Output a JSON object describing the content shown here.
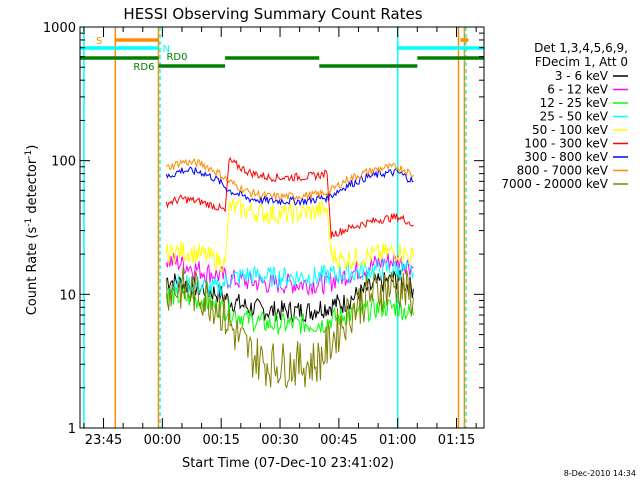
{
  "chart_data": {
    "type": "line",
    "title": "HESSI Observing Summary Count Rates",
    "xlabel": "Start Time (07-Dec-10 23:41:02)",
    "ylabel_main": "Count Rate (s",
    "ylabel_sup1": "-1",
    "ylabel_mid": " detector",
    "ylabel_sup2": "-1",
    "ylabel_end": ")",
    "yscale": "log",
    "ylim": [
      1,
      1000
    ],
    "xlim_min": [
      -21,
      82
    ],
    "y_ticks": [
      {
        "value": 1,
        "label": "1"
      },
      {
        "value": 10,
        "label": "10"
      },
      {
        "value": 100,
        "label": "100"
      },
      {
        "value": 1000,
        "label": "1000"
      }
    ],
    "x_ticks": [
      {
        "value": -15,
        "label": "23:45"
      },
      {
        "value": 0,
        "label": "00:00"
      },
      {
        "value": 15,
        "label": "00:15"
      },
      {
        "value": 30,
        "label": "00:30"
      },
      {
        "value": 45,
        "label": "00:45"
      },
      {
        "value": 60,
        "label": "01:00"
      },
      {
        "value": 75,
        "label": "01:15"
      }
    ],
    "legend_header": [
      "Det 1,3,4,5,6,9,",
      "FDecim 1, Att 0"
    ],
    "legend_placement": "right",
    "timestamp": "8-Dec-2010 14:34",
    "series": [
      {
        "name": "3 - 6 keV",
        "color": "#000000",
        "points": [
          [
            1,
            13
          ],
          [
            5,
            12
          ],
          [
            10,
            11
          ],
          [
            15,
            10
          ],
          [
            17,
            9
          ],
          [
            22,
            8
          ],
          [
            27,
            7.5
          ],
          [
            32,
            7.5
          ],
          [
            38,
            7.5
          ],
          [
            40,
            8
          ],
          [
            42,
            8
          ],
          [
            44,
            8.5
          ],
          [
            46,
            8.5
          ],
          [
            50,
            10
          ],
          [
            55,
            12
          ],
          [
            60,
            13
          ],
          [
            62,
            12
          ],
          [
            64,
            11
          ]
        ]
      },
      {
        "name": "6 - 12 keV",
        "color": "#ff00ff",
        "points": [
          [
            1,
            18
          ],
          [
            5,
            17
          ],
          [
            10,
            15
          ],
          [
            14,
            14
          ],
          [
            17,
            13
          ],
          [
            22,
            12.5
          ],
          [
            27,
            12
          ],
          [
            32,
            12
          ],
          [
            37,
            12
          ],
          [
            40,
            12
          ],
          [
            42,
            12
          ],
          [
            44,
            13
          ],
          [
            47,
            14
          ],
          [
            52,
            16
          ],
          [
            56,
            17.5
          ],
          [
            60,
            18
          ],
          [
            62,
            17
          ],
          [
            64,
            16
          ]
        ]
      },
      {
        "name": "12 - 25 keV",
        "color": "#00ff00",
        "points": [
          [
            1,
            10
          ],
          [
            5,
            9.5
          ],
          [
            10,
            9
          ],
          [
            14,
            8
          ],
          [
            17,
            7.5
          ],
          [
            22,
            6.5
          ],
          [
            27,
            6
          ],
          [
            32,
            6
          ],
          [
            38,
            6
          ],
          [
            41,
            6
          ],
          [
            43,
            6.5
          ],
          [
            47,
            7
          ],
          [
            52,
            7.5
          ],
          [
            56,
            8
          ],
          [
            60,
            8
          ],
          [
            62,
            7.5
          ],
          [
            64,
            7
          ]
        ]
      },
      {
        "name": "25 - 50 keV",
        "color": "#00ffff",
        "points": [
          [
            1,
            12
          ],
          [
            5,
            12
          ],
          [
            10,
            11.5
          ],
          [
            14,
            11
          ],
          [
            17,
            13
          ],
          [
            22,
            14
          ],
          [
            27,
            13.5
          ],
          [
            32,
            13.5
          ],
          [
            37,
            13.5
          ],
          [
            40,
            13.5
          ],
          [
            42,
            14
          ],
          [
            44,
            14
          ],
          [
            48,
            14.5
          ],
          [
            52,
            15
          ],
          [
            56,
            15.5
          ],
          [
            60,
            15.5
          ],
          [
            62,
            15
          ],
          [
            64,
            14.5
          ]
        ]
      },
      {
        "name": "50 - 100 keV",
        "color": "#ffff00",
        "points": [
          [
            1,
            20
          ],
          [
            5,
            21
          ],
          [
            10,
            20
          ],
          [
            14,
            18
          ],
          [
            16,
            17
          ],
          [
            17,
            45
          ],
          [
            22,
            42
          ],
          [
            27,
            40
          ],
          [
            32,
            40
          ],
          [
            37,
            41
          ],
          [
            40,
            42
          ],
          [
            42,
            44
          ],
          [
            43,
            20
          ],
          [
            46,
            18
          ],
          [
            50,
            19
          ],
          [
            55,
            20
          ],
          [
            60,
            21
          ],
          [
            62,
            20
          ],
          [
            64,
            19
          ]
        ]
      },
      {
        "name": "100 - 300 keV",
        "color": "#ff0000",
        "points": [
          [
            1,
            48
          ],
          [
            5,
            52
          ],
          [
            10,
            49
          ],
          [
            14,
            45
          ],
          [
            16,
            42
          ],
          [
            17,
            100
          ],
          [
            22,
            82
          ],
          [
            27,
            75
          ],
          [
            32,
            75
          ],
          [
            37,
            76
          ],
          [
            40,
            78
          ],
          [
            42,
            80
          ],
          [
            43,
            28
          ],
          [
            46,
            30
          ],
          [
            50,
            33
          ],
          [
            55,
            36
          ],
          [
            60,
            38
          ],
          [
            62,
            36
          ],
          [
            64,
            33
          ]
        ]
      },
      {
        "name": "300 - 800 keV",
        "color": "#0000ff",
        "points": [
          [
            1,
            75
          ],
          [
            5,
            85
          ],
          [
            10,
            82
          ],
          [
            14,
            72
          ],
          [
            17,
            60
          ],
          [
            22,
            52
          ],
          [
            27,
            50
          ],
          [
            32,
            50
          ],
          [
            37,
            50
          ],
          [
            40,
            52
          ],
          [
            42,
            53
          ],
          [
            43,
            55
          ],
          [
            47,
            65
          ],
          [
            52,
            75
          ],
          [
            56,
            80
          ],
          [
            60,
            82
          ],
          [
            62,
            76
          ],
          [
            64,
            70
          ]
        ]
      },
      {
        "name": "800 - 7000 keV",
        "color": "#ff8c00",
        "points": [
          [
            1,
            88
          ],
          [
            5,
            98
          ],
          [
            10,
            95
          ],
          [
            14,
            82
          ],
          [
            17,
            70
          ],
          [
            22,
            58
          ],
          [
            27,
            54
          ],
          [
            32,
            54
          ],
          [
            37,
            55
          ],
          [
            40,
            56
          ],
          [
            42,
            58
          ],
          [
            43,
            60
          ],
          [
            47,
            72
          ],
          [
            52,
            82
          ],
          [
            56,
            88
          ],
          [
            60,
            90
          ],
          [
            62,
            85
          ],
          [
            64,
            78
          ]
        ]
      },
      {
        "name": "7000 - 20000 keV",
        "color": "#808000",
        "points": [
          [
            1,
            11
          ],
          [
            5,
            11
          ],
          [
            10,
            10
          ],
          [
            14,
            8.5
          ],
          [
            17,
            6
          ],
          [
            20,
            4.5
          ],
          [
            23,
            3.5
          ],
          [
            27,
            3
          ],
          [
            32,
            3
          ],
          [
            37,
            3
          ],
          [
            40,
            3.2
          ],
          [
            42,
            4
          ],
          [
            44,
            5
          ],
          [
            48,
            7.5
          ],
          [
            52,
            9.5
          ],
          [
            56,
            11
          ],
          [
            60,
            11.5
          ],
          [
            62,
            10.5
          ],
          [
            64,
            9.5
          ]
        ]
      }
    ],
    "vertical_lines": [
      {
        "x": -20,
        "color": "#00ffff",
        "dash": false
      },
      {
        "x": -12,
        "color": "#ff8c00",
        "dash": false
      },
      {
        "x": -1,
        "color": "#ff8c00",
        "dash": false
      },
      {
        "x": -0.6,
        "color": "#00ffff",
        "dash": true
      },
      {
        "x": 60,
        "color": "#00ffff",
        "dash": false
      },
      {
        "x": 75.5,
        "color": "#ff8c00",
        "dash": false
      },
      {
        "x": 77,
        "color": "#ff8c00",
        "dash": false
      },
      {
        "x": 77.4,
        "color": "#00ffff",
        "dash": true
      }
    ],
    "flag_bars": [
      {
        "label": "S",
        "color": "#ff8c00",
        "level": 1,
        "segments": [
          [
            -12,
            -1
          ],
          [
            76,
            78
          ]
        ]
      },
      {
        "label": "N",
        "color": "#00ffff",
        "level": 2,
        "segments": [
          [
            -21,
            -1
          ],
          [
            60,
            82
          ]
        ]
      },
      {
        "label": "RD0",
        "color": "#008000",
        "level": 3,
        "segments": [
          [
            -21,
            -1
          ],
          [
            16,
            40
          ],
          [
            65,
            82
          ]
        ]
      },
      {
        "label": "RD6",
        "color": "#008000",
        "level": 4,
        "segments": [
          [
            -1,
            16
          ],
          [
            40,
            65
          ]
        ]
      }
    ]
  }
}
